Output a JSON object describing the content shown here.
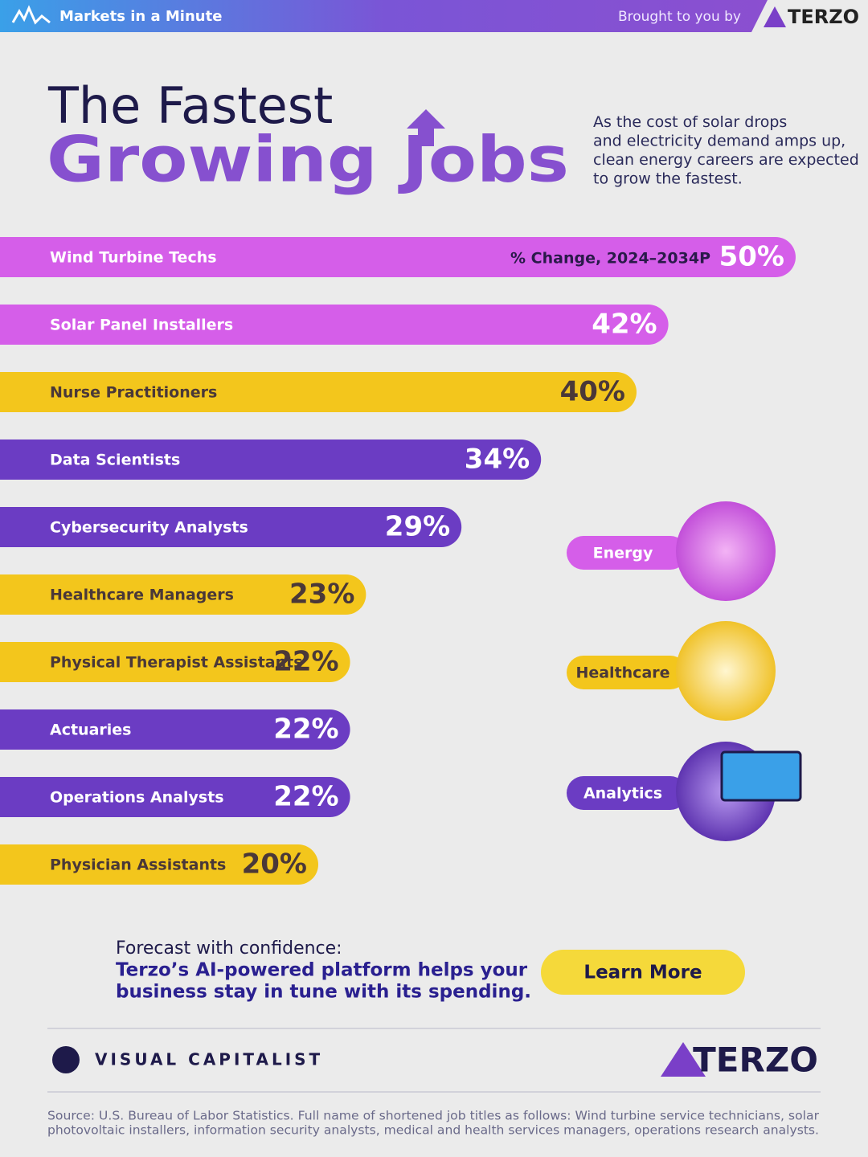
{
  "header": {
    "brand": "Markets in a Minute",
    "sponsor_text": "Brought to you by",
    "sponsor": "TERZO"
  },
  "chart_data": {
    "type": "bar",
    "orientation": "horizontal",
    "title_line1": "The Fastest",
    "title_line2": "Growing Jobs",
    "subtitle": "As the cost of solar drops and electricity demand amps up, clean energy careers are expected to grow the fastest.",
    "annotation": "% Change, 2024–2034P",
    "categories": [
      "Wind Turbine Techs",
      "Solar Panel Installers",
      "Nurse Practitioners",
      "Data Scientists",
      "Cybersecurity Analysts",
      "Healthcare Managers",
      "Physical Therapist Assistants",
      "Actuaries",
      "Operations Analysts",
      "Physician Assistants"
    ],
    "values": [
      50,
      42,
      40,
      34,
      29,
      23,
      22,
      22,
      22,
      20
    ],
    "value_labels": [
      "50%",
      "42%",
      "40%",
      "34%",
      "29%",
      "23%",
      "22%",
      "22%",
      "22%",
      "20%"
    ],
    "colors": [
      "#d55ee9",
      "#d55ee9",
      "#f3c61c",
      "#6b3cc3",
      "#6b3cc3",
      "#f3c61c",
      "#f3c61c",
      "#6b3cc3",
      "#6b3cc3",
      "#f3c61c"
    ],
    "legend": [
      {
        "name": "Energy",
        "color": "#d55ee9"
      },
      {
        "name": "Healthcare",
        "color": "#f3c61c"
      },
      {
        "name": "Analytics",
        "color": "#6b3cc3"
      }
    ]
  },
  "cta": {
    "lead": "Forecast with confidence:",
    "line1": "Terzo’s AI-powered platform helps your",
    "line2": "business stay in tune with its spending.",
    "button": "Learn More"
  },
  "footer": {
    "left_brand": "VISUAL CAPITALIST",
    "right_brand": "TERZO",
    "source_line1": "Source: U.S. Bureau of Labor Statistics. Full name of shortened job titles as follows: Wind turbine service technicians, solar",
    "source_line2": "photovoltaic installers, information security analysts, medical and health services managers, operations research analysts."
  }
}
